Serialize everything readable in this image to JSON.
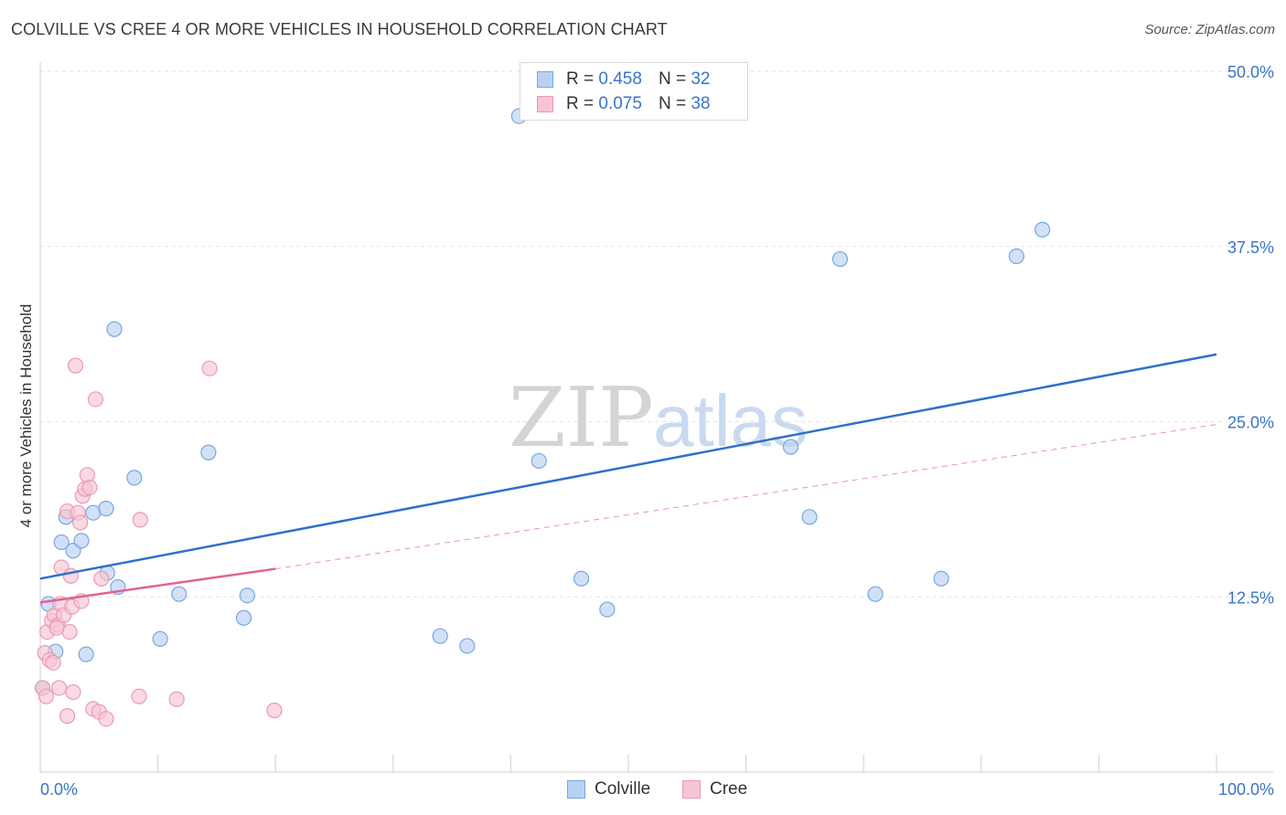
{
  "title": "COLVILLE VS CREE 4 OR MORE VEHICLES IN HOUSEHOLD CORRELATION CHART",
  "source": "Source: ZipAtlas.com",
  "watermark": {
    "zip": "ZIP",
    "atlas": "atlas"
  },
  "legend": {
    "series1": {
      "r_label": "R =",
      "r_value": "0.458",
      "n_label": "N =",
      "n_value": "32"
    },
    "series2": {
      "r_label": "R =",
      "r_value": "0.075",
      "n_label": "N =",
      "n_value": "38"
    }
  },
  "colors": {
    "colville_fill": "#b7d1f3",
    "colville_stroke": "#7aa6dc",
    "colville_line": "#2f6fcc",
    "cree_fill": "#f8c4d4",
    "cree_stroke": "#e99ab3",
    "cree_line": "#e0648f",
    "axis_label": "#3a74c8",
    "grid": "#e3e3e3"
  },
  "chart_data": {
    "type": "scatter",
    "title": "COLVILLE VS CREE 4 OR MORE VEHICLES IN HOUSEHOLD CORRELATION CHART",
    "xlabel": "",
    "ylabel": "4 or more Vehicles in Household",
    "xlim": [
      0,
      100
    ],
    "ylim": [
      0,
      50
    ],
    "x_tick_labels": [
      "0.0%",
      "100.0%"
    ],
    "y_ticks": [
      12.5,
      25.0,
      37.5,
      50.0
    ],
    "y_tick_labels": [
      "12.5%",
      "25.0%",
      "37.5%",
      "50.0%"
    ],
    "series": [
      {
        "name": "Colville",
        "points": [
          [
            0.2,
            6.0
          ],
          [
            0.7,
            12.0
          ],
          [
            1.3,
            8.6
          ],
          [
            1.8,
            16.4
          ],
          [
            2.2,
            18.2
          ],
          [
            2.8,
            15.8
          ],
          [
            3.5,
            16.5
          ],
          [
            3.9,
            8.4
          ],
          [
            4.5,
            18.5
          ],
          [
            5.6,
            18.8
          ],
          [
            5.7,
            14.2
          ],
          [
            6.3,
            31.6
          ],
          [
            6.6,
            13.2
          ],
          [
            8.0,
            21.0
          ],
          [
            10.2,
            9.5
          ],
          [
            11.8,
            12.7
          ],
          [
            14.3,
            22.8
          ],
          [
            17.3,
            11.0
          ],
          [
            17.6,
            12.6
          ],
          [
            34.0,
            9.7
          ],
          [
            36.3,
            9.0
          ],
          [
            40.7,
            46.8
          ],
          [
            42.4,
            22.2
          ],
          [
            46.0,
            13.8
          ],
          [
            48.2,
            11.6
          ],
          [
            63.8,
            23.2
          ],
          [
            65.4,
            18.2
          ],
          [
            68.0,
            36.6
          ],
          [
            71.0,
            12.7
          ],
          [
            76.6,
            13.8
          ],
          [
            83.0,
            36.8
          ],
          [
            85.2,
            38.7
          ]
        ],
        "trend": {
          "x": [
            0,
            100
          ],
          "y": [
            13.8,
            29.8
          ]
        }
      },
      {
        "name": "Cree",
        "points": [
          [
            0.2,
            6.0
          ],
          [
            0.4,
            8.5
          ],
          [
            0.6,
            10.0
          ],
          [
            0.8,
            8.0
          ],
          [
            1.0,
            10.8
          ],
          [
            1.1,
            7.8
          ],
          [
            1.2,
            11.2
          ],
          [
            1.5,
            10.5
          ],
          [
            1.6,
            6.0
          ],
          [
            1.7,
            12.0
          ],
          [
            1.8,
            14.6
          ],
          [
            2.0,
            11.2
          ],
          [
            2.3,
            4.0
          ],
          [
            2.3,
            18.6
          ],
          [
            2.5,
            10.0
          ],
          [
            2.6,
            14.0
          ],
          [
            2.7,
            11.8
          ],
          [
            2.8,
            5.7
          ],
          [
            3.0,
            29.0
          ],
          [
            3.2,
            18.5
          ],
          [
            3.4,
            17.8
          ],
          [
            3.5,
            12.2
          ],
          [
            3.6,
            19.7
          ],
          [
            3.8,
            20.2
          ],
          [
            4.0,
            21.2
          ],
          [
            4.2,
            20.3
          ],
          [
            4.5,
            4.5
          ],
          [
            4.7,
            26.6
          ],
          [
            5.0,
            4.3
          ],
          [
            5.2,
            13.8
          ],
          [
            5.6,
            3.8
          ],
          [
            8.4,
            5.4
          ],
          [
            8.5,
            18.0
          ],
          [
            11.6,
            5.2
          ],
          [
            14.4,
            28.8
          ],
          [
            19.9,
            4.4
          ],
          [
            0.5,
            5.4
          ],
          [
            1.4,
            10.3
          ]
        ],
        "trend": {
          "x": [
            0,
            20
          ],
          "y": [
            12.1,
            14.5
          ]
        },
        "trend_extension": {
          "x": [
            20,
            100
          ],
          "y": [
            14.5,
            24.8
          ]
        }
      }
    ]
  }
}
